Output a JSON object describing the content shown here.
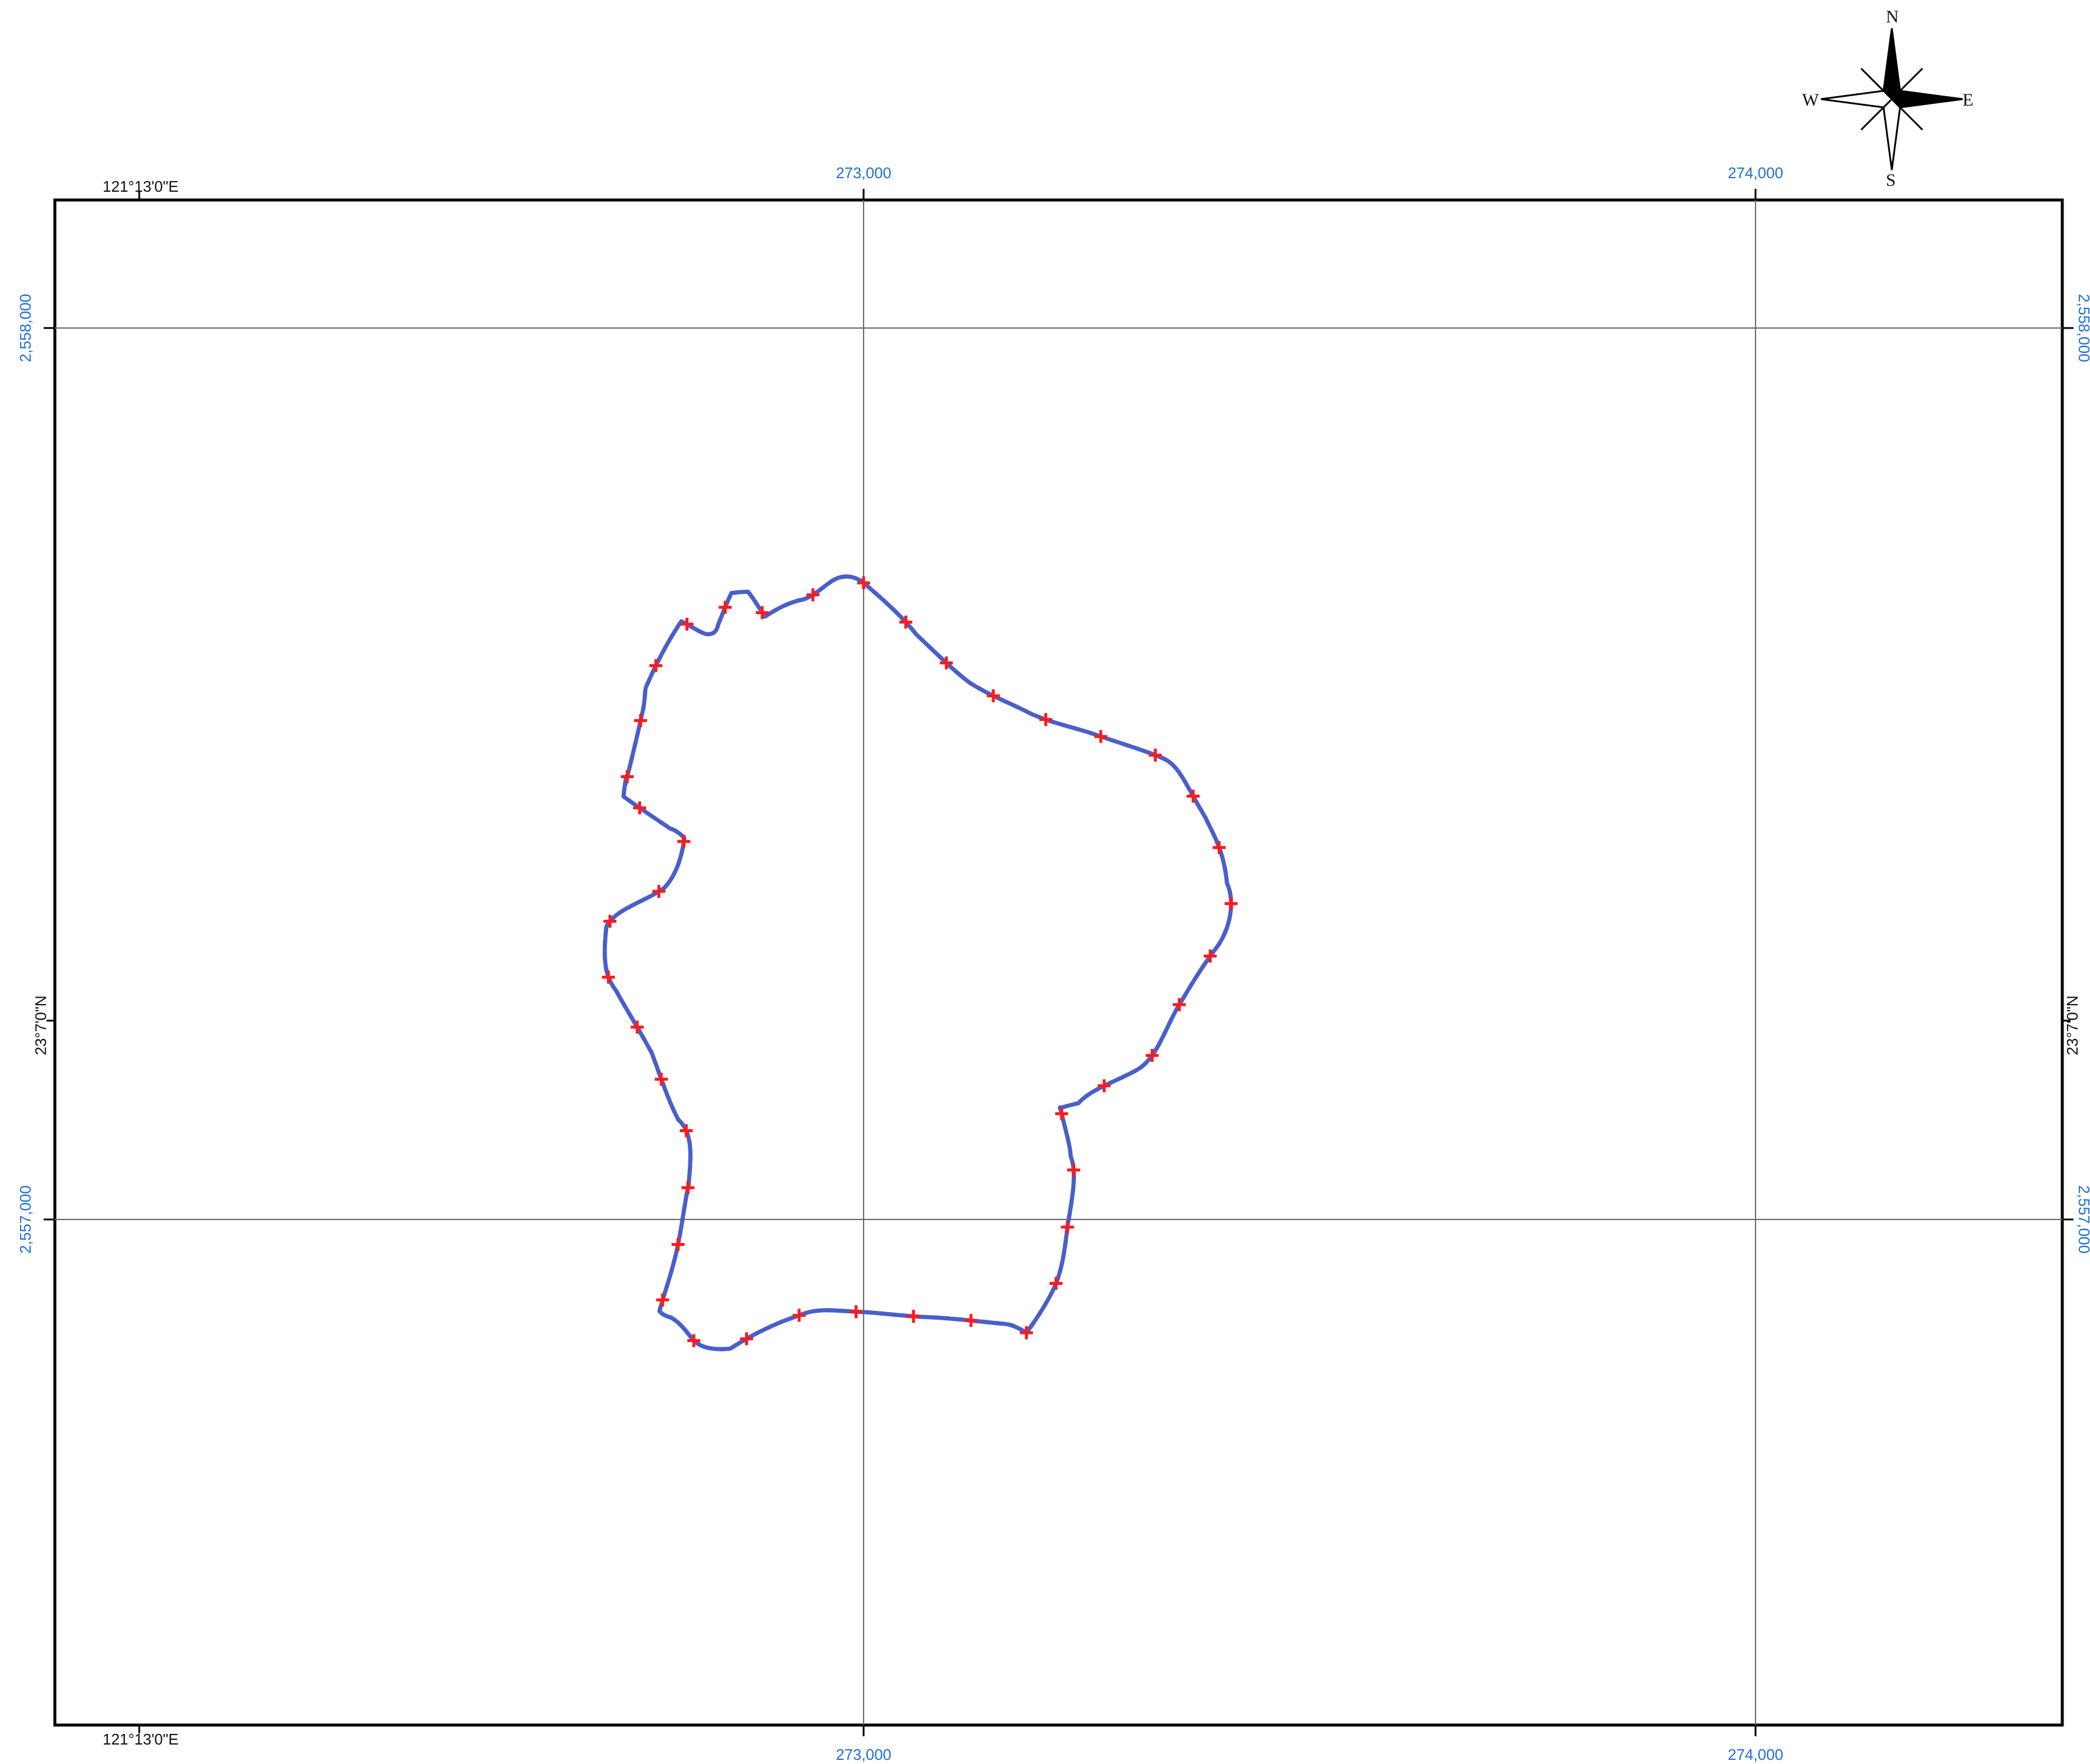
{
  "map": {
    "projected_grid": {
      "easting_labels": [
        "273,000",
        "274,000"
      ],
      "northing_labels": [
        "2,558,000",
        "2,557,000"
      ]
    },
    "geographic_labels": {
      "longitude": "121°13'0\"E",
      "latitude": "23°7'0\"N"
    },
    "compass": {
      "north": "N",
      "south": "S",
      "east": "E",
      "west": "W"
    },
    "boundary": {
      "line_color": "#4a5fc8",
      "dash_color": "#ff1a1a",
      "vertex_marker": "plus-marker"
    }
  }
}
